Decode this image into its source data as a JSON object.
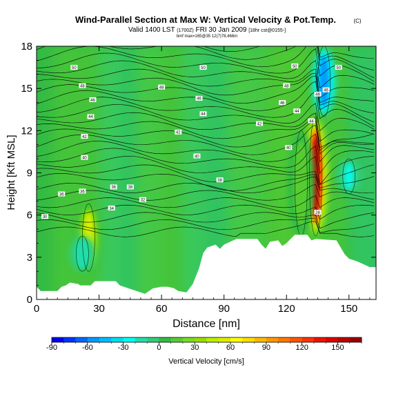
{
  "chart_data": {
    "type": "heatmap",
    "title": "Wind-Parallel Section at Max W: Vertical Velocity & Pot.Temp.",
    "title_mark": "(C)",
    "subtitle_valid": "Valid 1400 LST",
    "subtitle_time": "(1700Z)",
    "subtitle_date": "FRI 30 Jan 2009",
    "subtitle_run": "[18hr cst@0155-]",
    "subtitle_small": "bmf max=165@35 12(7)78,466m",
    "xlabel": "Distance [nm]",
    "ylabel": "Height [Kft MSL]",
    "xlim": [
      0,
      163
    ],
    "ylim": [
      0,
      18
    ],
    "x_ticks": [
      0,
      30,
      60,
      90,
      120,
      150
    ],
    "y_ticks": [
      0,
      3,
      6,
      9,
      12,
      15,
      18
    ],
    "terrain_profile": [
      [
        0,
        0.9
      ],
      [
        2,
        0.6
      ],
      [
        6,
        0.6
      ],
      [
        10,
        0.6
      ],
      [
        12,
        0.9
      ],
      [
        14,
        1.0
      ],
      [
        16,
        1.2
      ],
      [
        20,
        1.1
      ],
      [
        21,
        1.0
      ],
      [
        26,
        1.0
      ],
      [
        28,
        1.3
      ],
      [
        34,
        1.3
      ],
      [
        38,
        1.3
      ],
      [
        40,
        1.0
      ],
      [
        44,
        0.8
      ],
      [
        48,
        0.6
      ],
      [
        52,
        0.4
      ],
      [
        56,
        0.8
      ],
      [
        60,
        0.9
      ],
      [
        63,
        0.9
      ],
      [
        66,
        0.8
      ],
      [
        68,
        0.6
      ],
      [
        72,
        0.5
      ],
      [
        75,
        1.1
      ],
      [
        78,
        2.2
      ],
      [
        80,
        3.3
      ],
      [
        82,
        3.7
      ],
      [
        86,
        3.9
      ],
      [
        88,
        3.6
      ],
      [
        90,
        3.9
      ],
      [
        93,
        4.1
      ],
      [
        96,
        4.3
      ],
      [
        106,
        4.3
      ],
      [
        108,
        3.9
      ],
      [
        110,
        3.6
      ],
      [
        112,
        4.1
      ],
      [
        116,
        4.2
      ],
      [
        118,
        3.8
      ],
      [
        120,
        4.0
      ],
      [
        122,
        4.3
      ],
      [
        124,
        4.6
      ],
      [
        130,
        4.6
      ],
      [
        132,
        4.2
      ],
      [
        134,
        4.3
      ],
      [
        144,
        4.2
      ],
      [
        146,
        3.7
      ],
      [
        148,
        3.2
      ],
      [
        150,
        2.9
      ],
      [
        154,
        2.7
      ],
      [
        157,
        2.5
      ],
      [
        160,
        2.3
      ],
      [
        163,
        2.3
      ]
    ],
    "updraft_cores": [
      {
        "x": 134,
        "ymin": 4.5,
        "ymax": 13.0,
        "peak": 165
      },
      {
        "x": 25,
        "ymin": 2.0,
        "ymax": 6.8,
        "peak": 60
      },
      {
        "x": 127,
        "ymin": 4.5,
        "ymax": 12.0,
        "peak": 20
      }
    ],
    "downdraft_cores": [
      {
        "x": 138,
        "ymin": 13.0,
        "ymax": 18.0,
        "peak": -60
      },
      {
        "x": 150,
        "ymin": 7.5,
        "ymax": 10.0,
        "peak": -25
      },
      {
        "x": 22,
        "ymin": 2.0,
        "ymax": 4.5,
        "peak": -20
      }
    ],
    "isentrope_labels": [
      "50",
      "50",
      "50",
      "50",
      "48",
      "48",
      "48",
      "48",
      "46",
      "46",
      "46",
      "46",
      "44",
      "44",
      "44",
      "44",
      "42",
      "42",
      "42",
      "40",
      "40",
      "40",
      "38",
      "38",
      "36",
      "36",
      "36",
      "34",
      "32",
      "30",
      "28"
    ],
    "colorbar": {
      "label": "Vertical Velocity [cm/s]",
      "ticks": [
        -90,
        -60,
        -30,
        0,
        30,
        60,
        90,
        120,
        150
      ],
      "bins": [
        -90,
        -80,
        -70,
        -60,
        -50,
        -40,
        -30,
        -20,
        -10,
        0,
        10,
        20,
        30,
        40,
        50,
        60,
        70,
        80,
        90,
        100,
        110,
        120,
        130,
        140,
        150,
        160,
        170
      ],
      "colors": [
        "#0000ee",
        "#0033ff",
        "#0066ff",
        "#0099ff",
        "#00bbff",
        "#00ddee",
        "#00ffee",
        "#22ddaa",
        "#33cc77",
        "#33bb44",
        "#55cc33",
        "#77dd22",
        "#99dd00",
        "#bbee00",
        "#ddee00",
        "#ffff00",
        "#ffdd00",
        "#ffbb00",
        "#ff9900",
        "#ff7700",
        "#ff5500",
        "#ff3300",
        "#ee1100",
        "#dd0000",
        "#bb0000",
        "#990000"
      ]
    },
    "grid": false,
    "legend": "bottom colorbar"
  }
}
